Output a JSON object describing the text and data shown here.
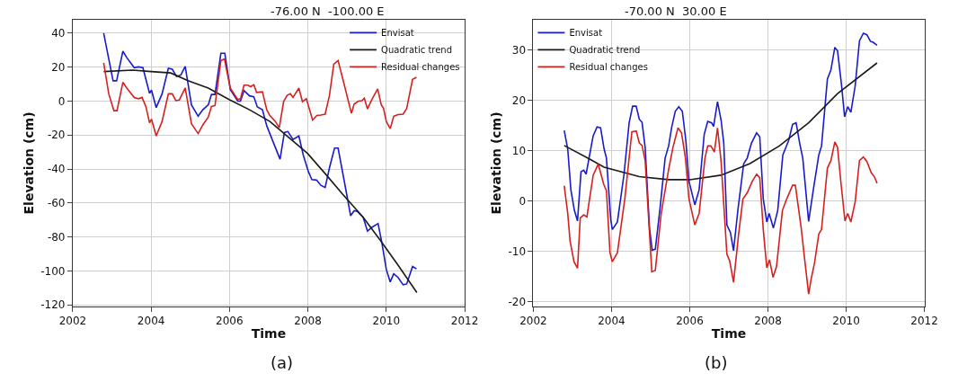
{
  "chart_data": [
    {
      "type": "line",
      "title": "-76.00 N  -100.00 E",
      "xlabel": "Time",
      "ylabel": "Elevation (cm)",
      "annotations": [
        "(a)"
      ],
      "xlim": [
        2002,
        2012
      ],
      "xticks": [
        2002,
        2004,
        2006,
        2008,
        2010,
        2012
      ],
      "ylim": [
        -121,
        48
      ],
      "yticks": [
        -120,
        -100,
        -80,
        -60,
        -40,
        -20,
        0,
        20,
        40
      ],
      "grid": true,
      "legend": "top right",
      "marker": "none",
      "line_style": "solid",
      "series": [
        {
          "name": "Envisat",
          "color": "#1a1acd",
          "x": [
            2002.79,
            2003.03,
            2003.12,
            2003.28,
            2003.38,
            2003.57,
            2003.68,
            2003.79,
            2003.96,
            2004.01,
            2004.13,
            2004.28,
            2004.44,
            2004.54,
            2004.65,
            2004.76,
            2004.87,
            2005.03,
            2005.2,
            2005.32,
            2005.46,
            2005.54,
            2005.63,
            2005.78,
            2005.88,
            2006.02,
            2006.21,
            2006.28,
            2006.37,
            2006.51,
            2006.62,
            2006.71,
            2006.84,
            2006.95,
            2007.14,
            2007.29,
            2007.4,
            2007.49,
            2007.62,
            2007.77,
            2007.88,
            2008.01,
            2008.1,
            2008.22,
            2008.33,
            2008.44,
            2008.55,
            2008.68,
            2008.77,
            2008.92,
            2009.09,
            2009.18,
            2009.26,
            2009.41,
            2009.52,
            2009.63,
            2009.79,
            2009.89,
            2010.0,
            2010.1,
            2010.19,
            2010.3,
            2010.43,
            2010.52,
            2010.67,
            2010.77
          ],
          "values": [
            40,
            12,
            12,
            29.4,
            25.6,
            19.7,
            20.2,
            19.7,
            4.6,
            6.5,
            -3.8,
            4.3,
            19.3,
            18.8,
            14.5,
            15.4,
            20.5,
            -2.2,
            -8.9,
            -5.1,
            -2.1,
            3.9,
            3.9,
            28.2,
            28.2,
            6.8,
            0,
            0,
            6.2,
            3.1,
            2.6,
            -3.4,
            -5.1,
            -14.5,
            -25.6,
            -34.2,
            -18.5,
            -17.9,
            -22.6,
            -20.5,
            -31.6,
            -41.4,
            -46.2,
            -46.5,
            -49.6,
            -50.9,
            -39.3,
            -27.7,
            -27.7,
            -46.2,
            -67.5,
            -64.6,
            -65,
            -68.4,
            -76.6,
            -74.4,
            -72.1,
            -83.8,
            -99.1,
            -106.5,
            -101.7,
            -103.9,
            -108.2,
            -107.7,
            -97.4,
            -98.8
          ]
        },
        {
          "name": "Quadratic trend",
          "color": "#1a1a1a",
          "x": [
            2002.79,
            2003.53,
            2004.0,
            2004.5,
            2004.94,
            2005.46,
            2005.99,
            2006.51,
            2007.03,
            2007.51,
            2007.99,
            2008.44,
            2008.88,
            2009.41,
            2009.85,
            2010.3,
            2010.78
          ],
          "values": [
            17.4,
            18.3,
            17.4,
            16.6,
            12.0,
            7.7,
            0.9,
            -5.1,
            -12.0,
            -21.4,
            -30.8,
            -42.7,
            -54.7,
            -68.4,
            -82.1,
            -96.6,
            -112.8
          ]
        },
        {
          "name": "Residual changes",
          "color": "#d62020",
          "x": [
            2002.79,
            2002.92,
            2003.05,
            2003.13,
            2003.28,
            2003.38,
            2003.57,
            2003.68,
            2003.77,
            2003.87,
            2003.96,
            2004.01,
            2004.13,
            2004.28,
            2004.44,
            2004.54,
            2004.63,
            2004.72,
            2004.87,
            2005.03,
            2005.2,
            2005.32,
            2005.46,
            2005.54,
            2005.63,
            2005.78,
            2005.87,
            2006.02,
            2006.21,
            2006.28,
            2006.37,
            2006.47,
            2006.54,
            2006.62,
            2006.69,
            2006.84,
            2006.95,
            2007.03,
            2007.17,
            2007.27,
            2007.38,
            2007.47,
            2007.55,
            2007.62,
            2007.77,
            2007.86,
            2007.96,
            2008.12,
            2008.23,
            2008.33,
            2008.44,
            2008.55,
            2008.66,
            2008.77,
            2008.92,
            2009.11,
            2009.18,
            2009.29,
            2009.38,
            2009.44,
            2009.52,
            2009.63,
            2009.78,
            2009.87,
            2009.93,
            2010.0,
            2010.1,
            2010.19,
            2010.3,
            2010.43,
            2010.52,
            2010.67,
            2010.77
          ],
          "values": [
            22.6,
            4.3,
            -5.6,
            -5.6,
            11.1,
            7.7,
            2.1,
            1.4,
            2.2,
            -3.4,
            -12.8,
            -10.6,
            -20.5,
            -12.0,
            4.3,
            4.3,
            0.3,
            0.7,
            7.7,
            -13.3,
            -19.1,
            -14.0,
            -9.4,
            -3.1,
            -2.6,
            23.9,
            24.8,
            7.7,
            0.9,
            1.4,
            9.4,
            9.4,
            8.5,
            9.7,
            5.1,
            5.5,
            -5.1,
            -8.5,
            -12.0,
            -15.7,
            -0.3,
            3.4,
            4.3,
            2.2,
            7.7,
            -0.3,
            1.4,
            -11.1,
            -8.5,
            -8.2,
            -7.7,
            3.4,
            21.7,
            23.9,
            10.3,
            -7.2,
            -1.7,
            0,
            0.3,
            1.7,
            -4.6,
            0.9,
            7.2,
            -2.1,
            -4.3,
            -12.0,
            -16.2,
            -8.9,
            -7.9,
            -7.7,
            -4.3,
            12.8,
            14.0
          ]
        }
      ]
    },
    {
      "type": "line",
      "title": "-70.00 N  30.00 E",
      "xlabel": "Time",
      "ylabel": "Elevation (cm)",
      "annotations": [
        "(b)"
      ],
      "xlim": [
        2002,
        2012
      ],
      "xticks": [
        2002,
        2004,
        2006,
        2008,
        2010,
        2012
      ],
      "ylim": [
        -21,
        36
      ],
      "yticks": [
        -20,
        -10,
        0,
        10,
        20,
        30
      ],
      "grid": true,
      "legend": "top left",
      "marker": "none",
      "line_style": "solid",
      "series": [
        {
          "name": "Envisat",
          "color": "#1a1acd",
          "x": [
            2002.79,
            2002.88,
            2002.96,
            2003.05,
            2003.13,
            2003.22,
            2003.29,
            2003.35,
            2003.53,
            2003.63,
            2003.72,
            2003.81,
            2003.87,
            2003.98,
            2004.02,
            2004.15,
            2004.32,
            2004.45,
            2004.54,
            2004.63,
            2004.71,
            2004.78,
            2004.86,
            2004.97,
            2005.04,
            2005.12,
            2005.25,
            2005.37,
            2005.46,
            2005.54,
            2005.63,
            2005.72,
            2005.81,
            2005.9,
            2005.98,
            2006.13,
            2006.24,
            2006.37,
            2006.46,
            2006.56,
            2006.61,
            2006.71,
            2006.8,
            2006.87,
            2006.95,
            2007.04,
            2007.12,
            2007.23,
            2007.38,
            2007.47,
            2007.58,
            2007.71,
            2007.79,
            2007.88,
            2007.97,
            2008.03,
            2008.14,
            2008.25,
            2008.38,
            2008.53,
            2008.63,
            2008.72,
            2008.81,
            2008.89,
            2009.04,
            2009.17,
            2009.3,
            2009.37,
            2009.52,
            2009.61,
            2009.71,
            2009.78,
            2009.88,
            2009.96,
            2010.04,
            2010.12,
            2010.23,
            2010.34,
            2010.44,
            2010.53,
            2010.62,
            2010.69,
            2010.79
          ],
          "values": [
            14.0,
            10.3,
            2.2,
            -1.9,
            -4.0,
            5.8,
            6.1,
            5.3,
            12.9,
            14.7,
            14.5,
            10.3,
            8.5,
            -3.7,
            -5.7,
            -4.2,
            5.3,
            15.5,
            18.8,
            18.8,
            16.2,
            15.6,
            10.6,
            -5.4,
            -9.8,
            -9.6,
            -0.8,
            8.5,
            10.9,
            14.7,
            17.8,
            18.7,
            17.8,
            12.0,
            3.9,
            -0.8,
            2.2,
            13.2,
            15.8,
            15.5,
            14.8,
            19.7,
            16.1,
            11.5,
            -4.8,
            -6.3,
            -9.9,
            -1.9,
            7.4,
            8.5,
            11.5,
            13.5,
            12.7,
            0.4,
            -4.2,
            -2.5,
            -5.4,
            -1.9,
            9.1,
            12.0,
            15.2,
            15.5,
            11.5,
            8.5,
            -4.1,
            2.7,
            9.1,
            10.9,
            24.2,
            26.0,
            30.5,
            29.8,
            23.1,
            16.7,
            18.7,
            17.6,
            22.8,
            31.8,
            33.3,
            33.0,
            31.7,
            31.5,
            30.9
          ]
        },
        {
          "name": "Quadratic trend",
          "color": "#1a1a1a",
          "x": [
            2002.79,
            2003.44,
            2003.81,
            2004.71,
            2005.46,
            2006.0,
            2006.8,
            2007.54,
            2008.29,
            2009.04,
            2009.78,
            2010.79
          ],
          "values": [
            11.0,
            8.3,
            6.7,
            4.8,
            4.2,
            4.2,
            5.1,
            7.4,
            10.9,
            15.5,
            21.3,
            27.4
          ]
        },
        {
          "name": "Residual changes",
          "color": "#d62020",
          "x": [
            2002.79,
            2002.88,
            2002.94,
            2003.04,
            2003.13,
            2003.2,
            2003.29,
            2003.37,
            2003.53,
            2003.66,
            2003.8,
            2003.87,
            2003.96,
            2004.02,
            2004.15,
            2004.34,
            2004.52,
            2004.63,
            2004.71,
            2004.78,
            2004.86,
            2005.03,
            2005.12,
            2005.27,
            2005.46,
            2005.57,
            2005.7,
            2005.79,
            2005.89,
            2005.98,
            2006.13,
            2006.24,
            2006.39,
            2006.46,
            2006.54,
            2006.63,
            2006.71,
            2006.8,
            2006.95,
            2007.02,
            2007.12,
            2007.25,
            2007.36,
            2007.47,
            2007.6,
            2007.71,
            2007.79,
            2007.88,
            2007.97,
            2008.04,
            2008.13,
            2008.22,
            2008.37,
            2008.48,
            2008.63,
            2008.7,
            2008.85,
            2008.95,
            2009.04,
            2009.11,
            2009.19,
            2009.3,
            2009.37,
            2009.52,
            2009.61,
            2009.71,
            2009.78,
            2009.87,
            2009.97,
            2010.04,
            2010.12,
            2010.23,
            2010.34,
            2010.44,
            2010.53,
            2010.64,
            2010.72,
            2010.79
          ],
          "values": [
            3.0,
            -2.5,
            -8.0,
            -12.1,
            -13.4,
            -3.4,
            -2.8,
            -3.2,
            5.1,
            7.3,
            3.3,
            2.0,
            -10.3,
            -12.1,
            -10.3,
            0.4,
            13.7,
            13.9,
            11.5,
            11.0,
            8.0,
            -14.1,
            -13.8,
            -2.5,
            6.2,
            10.6,
            14.5,
            13.5,
            8.5,
            0.4,
            -4.8,
            -2.5,
            8.5,
            10.9,
            10.9,
            9.7,
            14.5,
            8.0,
            -10.6,
            -11.9,
            -16.2,
            -6.6,
            0.4,
            1.6,
            3.9,
            5.3,
            4.6,
            -5.7,
            -13.3,
            -11.7,
            -15.2,
            -13.0,
            -1.9,
            0.4,
            3.1,
            3.1,
            -5.4,
            -12.4,
            -18.5,
            -15.3,
            -12.4,
            -6.6,
            -5.7,
            6.5,
            8.0,
            11.7,
            10.6,
            3.3,
            -4.0,
            -2.5,
            -4.2,
            -0.2,
            8.0,
            8.7,
            7.8,
            5.6,
            4.8,
            3.5
          ]
        }
      ]
    }
  ]
}
